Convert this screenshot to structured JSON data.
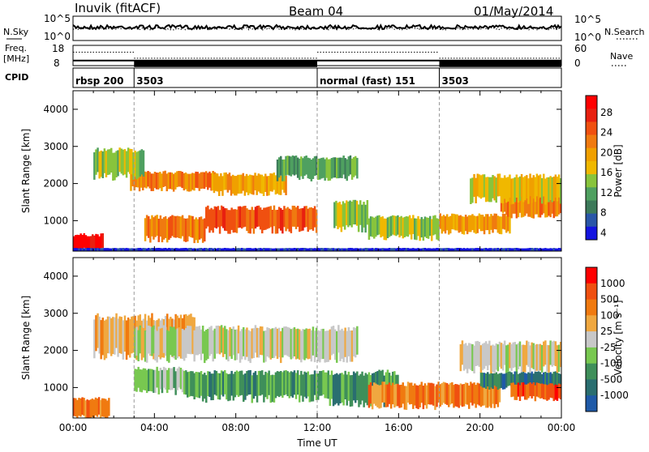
{
  "header": {
    "station": "Inuvik (fitACF)",
    "beam": "Beam 04",
    "date": "01/May/2014"
  },
  "left_labels": {
    "nsky": "N.Sky",
    "freq_line1": "Freq.",
    "freq_line2": "[MHz]",
    "cpid": "CPID"
  },
  "right_labels": {
    "nsearch": "N.Search",
    "nave": "Nave"
  },
  "chart_data": [
    {
      "type": "line",
      "name": "noise",
      "series": [
        {
          "name": "N.Sky",
          "style": "solid"
        },
        {
          "name": "N.Search",
          "style": "dotted"
        }
      ],
      "left_ticks": [
        "10^5",
        "10^0"
      ],
      "right_ticks": [
        "10^5",
        "10^0"
      ],
      "ylim_log10": [
        0,
        5
      ]
    },
    {
      "type": "line",
      "name": "frequency-nave",
      "left_ticks": [
        "18",
        "8"
      ],
      "right_ticks": [
        "60",
        "0"
      ],
      "freq_ylim": [
        8,
        18
      ],
      "nave_ylim": [
        0,
        60
      ],
      "freq_value": 10.5,
      "nave_segments": [
        {
          "from": 0.0,
          "to": 3.0,
          "value": 40
        },
        {
          "from": 3.0,
          "to": 12.0,
          "value": 22
        },
        {
          "from": 12.0,
          "to": 18.0,
          "value": 40
        },
        {
          "from": 18.0,
          "to": 24.0,
          "value": 22
        }
      ]
    },
    {
      "type": "table",
      "name": "cpid",
      "segments": [
        {
          "label": "rbsp 200",
          "start": 0.0
        },
        {
          "label": "3503",
          "start": 3.0
        },
        {
          "label": "normal (fast) 151",
          "start": 12.0
        },
        {
          "label": "3503",
          "start": 18.0
        }
      ]
    },
    {
      "type": "heatmap",
      "name": "power",
      "ylabel": "Slant Range [km]",
      "yticks": [
        1000,
        2000,
        3000,
        4000
      ],
      "ylim": [
        180,
        4500
      ],
      "xlim": [
        0,
        24
      ],
      "colorbar_label": "Power [dB]",
      "colorbar_ticks": [
        "28",
        "24",
        "20",
        "16",
        "12",
        "8",
        "4"
      ],
      "colors": [
        "#1414e0",
        "#2a56a8",
        "#3d7a5a",
        "#4fa060",
        "#88c43c",
        "#f0b800",
        "#f0a000",
        "#f07a10",
        "#f05010",
        "#e82010",
        "#ff0000"
      ],
      "bands": [
        {
          "x0": 0.0,
          "x1": 1.5,
          "y0": 200,
          "y1": 620,
          "level": 10
        },
        {
          "x0": 2.8,
          "x1": 7.0,
          "y0": 1850,
          "y1": 2300,
          "level": 7
        },
        {
          "x0": 6.8,
          "x1": 10.5,
          "y0": 1750,
          "y1": 2250,
          "level": 6
        },
        {
          "x0": 6.5,
          "x1": 12.0,
          "y0": 750,
          "y1": 1350,
          "level": 8
        },
        {
          "x0": 3.5,
          "x1": 6.5,
          "y0": 500,
          "y1": 1100,
          "level": 7
        },
        {
          "x0": 1.0,
          "x1": 3.5,
          "y0": 2200,
          "y1": 2900,
          "level": 4
        },
        {
          "x0": 10.0,
          "x1": 14.0,
          "y0": 2150,
          "y1": 2700,
          "level": 3
        },
        {
          "x0": 12.8,
          "x1": 14.5,
          "y0": 800,
          "y1": 1500,
          "level": 4
        },
        {
          "x0": 14.5,
          "x1": 18.0,
          "y0": 550,
          "y1": 1100,
          "level": 4
        },
        {
          "x0": 18.0,
          "x1": 21.5,
          "y0": 700,
          "y1": 1150,
          "level": 6
        },
        {
          "x0": 21.0,
          "x1": 24.0,
          "y0": 1150,
          "y1": 1700,
          "level": 7
        },
        {
          "x0": 19.5,
          "x1": 24.0,
          "y0": 1550,
          "y1": 2200,
          "level": 5
        },
        {
          "x0": 0.0,
          "x1": 24.0,
          "y0": 180,
          "y1": 260,
          "level": 0
        }
      ]
    },
    {
      "type": "heatmap",
      "name": "velocity",
      "ylabel": "Slant Range [km]",
      "yticks": [
        1000,
        2000,
        3000,
        4000
      ],
      "ylim": [
        180,
        4500
      ],
      "xlim": [
        0,
        24
      ],
      "xticks": [
        "00:00",
        "04:00",
        "08:00",
        "12:00",
        "16:00",
        "20:00",
        "00:00"
      ],
      "xlabel": "Time UT",
      "colorbar_label": "Velocity [m s⁻¹]",
      "colorbar_ticks": [
        "1000",
        "500",
        "100",
        "25",
        "-25",
        "-100",
        "-500",
        "-1000"
      ],
      "colors": [
        "#ff0000",
        "#f05010",
        "#f07a10",
        "#f0a840",
        "#c8c8c8",
        "#78c850",
        "#3f8f5a",
        "#2a6e70",
        "#1f5aa8"
      ],
      "bands": [
        {
          "x0": 0.0,
          "x1": 1.8,
          "y0": 200,
          "y1": 700,
          "level": 2
        },
        {
          "x0": 1.0,
          "x1": 6.0,
          "y0": 1900,
          "y1": 2900,
          "level": 3
        },
        {
          "x0": 3.0,
          "x1": 14.0,
          "y0": 1800,
          "y1": 2600,
          "level": 4
        },
        {
          "x0": 5.5,
          "x1": 12.5,
          "y0": 700,
          "y1": 1400,
          "level": 6
        },
        {
          "x0": 3.0,
          "x1": 5.5,
          "y0": 900,
          "y1": 1500,
          "level": 5
        },
        {
          "x0": 12.5,
          "x1": 16.0,
          "y0": 600,
          "y1": 1400,
          "level": 6
        },
        {
          "x0": 14.5,
          "x1": 21.0,
          "y0": 500,
          "y1": 1100,
          "level": 2
        },
        {
          "x0": 20.0,
          "x1": 24.0,
          "y0": 1000,
          "y1": 1400,
          "level": 7
        },
        {
          "x0": 19.0,
          "x1": 24.0,
          "y0": 1500,
          "y1": 2200,
          "level": 4
        },
        {
          "x0": 21.5,
          "x1": 24.0,
          "y0": 700,
          "y1": 1100,
          "level": 1
        }
      ]
    }
  ]
}
